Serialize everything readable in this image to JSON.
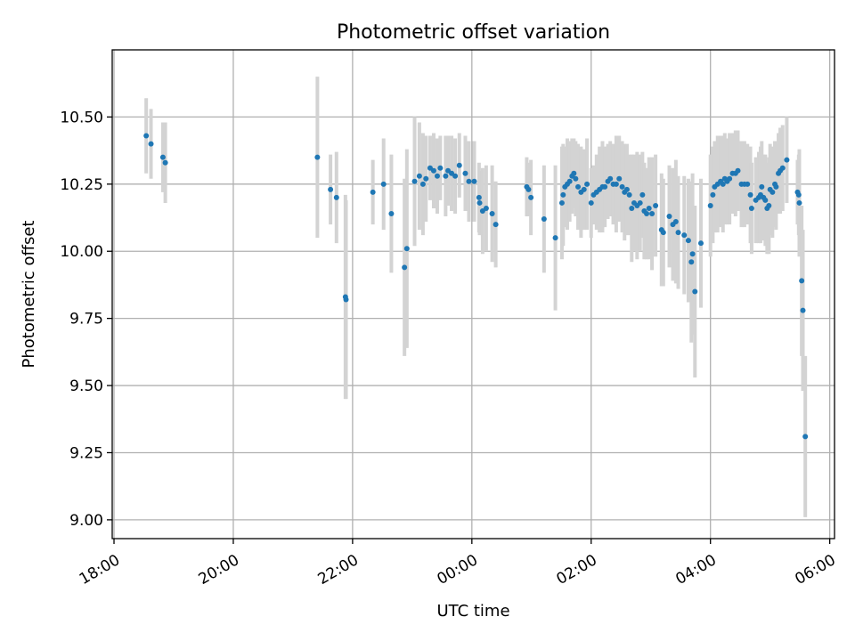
{
  "chart_data": {
    "type": "scatter",
    "title": "Photometric offset variation",
    "xlabel": "UTC time",
    "ylabel": "Photometric offset",
    "x_unit": "hours since 18:00 UTC",
    "xlim": [
      -0.03,
      12.08
    ],
    "ylim": [
      8.93,
      10.75
    ],
    "grid": true,
    "x_ticks": [
      {
        "value": 0,
        "label": "18:00"
      },
      {
        "value": 2,
        "label": "20:00"
      },
      {
        "value": 4,
        "label": "22:00"
      },
      {
        "value": 6,
        "label": "00:00"
      },
      {
        "value": 8,
        "label": "02:00"
      },
      {
        "value": 10,
        "label": "04:00"
      },
      {
        "value": 12,
        "label": "06:00"
      }
    ],
    "y_ticks": [
      {
        "value": 9.0,
        "label": "9.00"
      },
      {
        "value": 9.25,
        "label": "9.25"
      },
      {
        "value": 9.5,
        "label": "9.50"
      },
      {
        "value": 9.75,
        "label": "9.75"
      },
      {
        "value": 10.0,
        "label": "10.00"
      },
      {
        "value": 10.25,
        "label": "10.25"
      },
      {
        "value": 10.5,
        "label": "10.50"
      }
    ],
    "point_color": "#1f77b4",
    "errorbar_color": "#d3d3d3",
    "series": [
      {
        "name": "offset",
        "points": [
          [
            0.54,
            10.43,
            0.14
          ],
          [
            0.62,
            10.4,
            0.13
          ],
          [
            0.82,
            10.35,
            0.13
          ],
          [
            0.86,
            10.33,
            0.15
          ],
          [
            3.41,
            10.35,
            0.3
          ],
          [
            3.63,
            10.23,
            0.13
          ],
          [
            3.73,
            10.2,
            0.17
          ],
          [
            3.88,
            9.83,
            0.38
          ],
          [
            3.89,
            9.82,
            0.37
          ],
          [
            4.34,
            10.22,
            0.12
          ],
          [
            4.52,
            10.25,
            0.17
          ],
          [
            4.65,
            10.14,
            0.22
          ],
          [
            4.87,
            9.94,
            0.33
          ],
          [
            4.91,
            10.01,
            0.37
          ],
          [
            5.04,
            10.26,
            0.24
          ],
          [
            5.12,
            10.28,
            0.2
          ],
          [
            5.18,
            10.25,
            0.19
          ],
          [
            5.23,
            10.27,
            0.16
          ],
          [
            5.3,
            10.31,
            0.12
          ],
          [
            5.36,
            10.3,
            0.14
          ],
          [
            5.42,
            10.28,
            0.14
          ],
          [
            5.47,
            10.31,
            0.12
          ],
          [
            5.56,
            10.28,
            0.15
          ],
          [
            5.6,
            10.3,
            0.13
          ],
          [
            5.66,
            10.29,
            0.14
          ],
          [
            5.72,
            10.28,
            0.14
          ],
          [
            5.79,
            10.32,
            0.12
          ],
          [
            5.89,
            10.29,
            0.14
          ],
          [
            5.95,
            10.26,
            0.15
          ],
          [
            6.04,
            10.26,
            0.15
          ],
          [
            6.12,
            10.2,
            0.13
          ],
          [
            6.13,
            10.18,
            0.12
          ],
          [
            6.18,
            10.15,
            0.16
          ],
          [
            6.24,
            10.16,
            0.16
          ],
          [
            6.34,
            10.14,
            0.18
          ],
          [
            6.4,
            10.1,
            0.16
          ],
          [
            6.92,
            10.24,
            0.11
          ],
          [
            6.95,
            10.23,
            0.1
          ],
          [
            6.99,
            10.2,
            0.14
          ],
          [
            7.21,
            10.12,
            0.2
          ],
          [
            7.4,
            10.05,
            0.27
          ],
          [
            7.51,
            10.18,
            0.21
          ],
          [
            7.53,
            10.21,
            0.19
          ],
          [
            7.56,
            10.24,
            0.15
          ],
          [
            7.6,
            10.25,
            0.17
          ],
          [
            7.64,
            10.26,
            0.15
          ],
          [
            7.68,
            10.28,
            0.14
          ],
          [
            7.71,
            10.29,
            0.13
          ],
          [
            7.74,
            10.27,
            0.14
          ],
          [
            7.78,
            10.24,
            0.16
          ],
          [
            7.83,
            10.22,
            0.17
          ],
          [
            7.88,
            10.23,
            0.15
          ],
          [
            7.93,
            10.25,
            0.17
          ],
          [
            8.0,
            10.18,
            0.13
          ],
          [
            8.04,
            10.21,
            0.11
          ],
          [
            8.09,
            10.22,
            0.14
          ],
          [
            8.14,
            10.23,
            0.16
          ],
          [
            8.19,
            10.24,
            0.17
          ],
          [
            8.23,
            10.24,
            0.15
          ],
          [
            8.28,
            10.26,
            0.14
          ],
          [
            8.32,
            10.27,
            0.14
          ],
          [
            8.37,
            10.25,
            0.15
          ],
          [
            8.42,
            10.25,
            0.18
          ],
          [
            8.47,
            10.27,
            0.16
          ],
          [
            8.52,
            10.24,
            0.17
          ],
          [
            8.56,
            10.22,
            0.18
          ],
          [
            8.6,
            10.23,
            0.17
          ],
          [
            8.64,
            10.21,
            0.15
          ],
          [
            8.68,
            10.16,
            0.2
          ],
          [
            8.72,
            10.18,
            0.18
          ],
          [
            8.77,
            10.17,
            0.2
          ],
          [
            8.82,
            10.18,
            0.18
          ],
          [
            8.86,
            10.21,
            0.16
          ],
          [
            8.89,
            10.15,
            0.18
          ],
          [
            8.93,
            10.14,
            0.17
          ],
          [
            8.97,
            10.16,
            0.19
          ],
          [
            9.02,
            10.14,
            0.21
          ],
          [
            9.08,
            10.17,
            0.19
          ],
          [
            9.18,
            10.08,
            0.21
          ],
          [
            9.21,
            10.07,
            0.2
          ],
          [
            9.31,
            10.13,
            0.19
          ],
          [
            9.37,
            10.1,
            0.21
          ],
          [
            9.42,
            10.11,
            0.23
          ],
          [
            9.46,
            10.07,
            0.21
          ],
          [
            9.56,
            10.06,
            0.22
          ],
          [
            9.63,
            10.04,
            0.23
          ],
          [
            9.68,
            9.96,
            0.3
          ],
          [
            9.7,
            9.99,
            0.3
          ],
          [
            9.74,
            9.85,
            0.32
          ],
          [
            9.84,
            10.03,
            0.24
          ],
          [
            10.0,
            10.17,
            0.19
          ],
          [
            10.04,
            10.21,
            0.18
          ],
          [
            10.07,
            10.24,
            0.17
          ],
          [
            10.12,
            10.25,
            0.18
          ],
          [
            10.17,
            10.26,
            0.17
          ],
          [
            10.21,
            10.25,
            0.18
          ],
          [
            10.24,
            10.27,
            0.17
          ],
          [
            10.28,
            10.26,
            0.16
          ],
          [
            10.32,
            10.27,
            0.17
          ],
          [
            10.37,
            10.29,
            0.15
          ],
          [
            10.42,
            10.29,
            0.16
          ],
          [
            10.46,
            10.3,
            0.15
          ],
          [
            10.52,
            10.25,
            0.16
          ],
          [
            10.57,
            10.25,
            0.16
          ],
          [
            10.62,
            10.25,
            0.15
          ],
          [
            10.67,
            10.21,
            0.18
          ],
          [
            10.69,
            10.16,
            0.17
          ],
          [
            10.76,
            10.19,
            0.16
          ],
          [
            10.81,
            10.2,
            0.17
          ],
          [
            10.84,
            10.21,
            0.18
          ],
          [
            10.86,
            10.24,
            0.17
          ],
          [
            10.89,
            10.2,
            0.16
          ],
          [
            10.92,
            10.19,
            0.17
          ],
          [
            10.95,
            10.16,
            0.17
          ],
          [
            10.98,
            10.17,
            0.18
          ],
          [
            11.0,
            10.23,
            0.17
          ],
          [
            11.04,
            10.22,
            0.17
          ],
          [
            11.08,
            10.25,
            0.16
          ],
          [
            11.1,
            10.24,
            0.16
          ],
          [
            11.14,
            10.29,
            0.15
          ],
          [
            11.17,
            10.3,
            0.16
          ],
          [
            11.21,
            10.31,
            0.16
          ],
          [
            11.28,
            10.34,
            0.16
          ],
          [
            11.46,
            10.22,
            0.12
          ],
          [
            11.48,
            10.21,
            0.15
          ],
          [
            11.49,
            10.18,
            0.2
          ],
          [
            11.53,
            9.89,
            0.28
          ],
          [
            11.55,
            9.78,
            0.3
          ],
          [
            11.59,
            9.31,
            0.3
          ]
        ]
      }
    ]
  }
}
